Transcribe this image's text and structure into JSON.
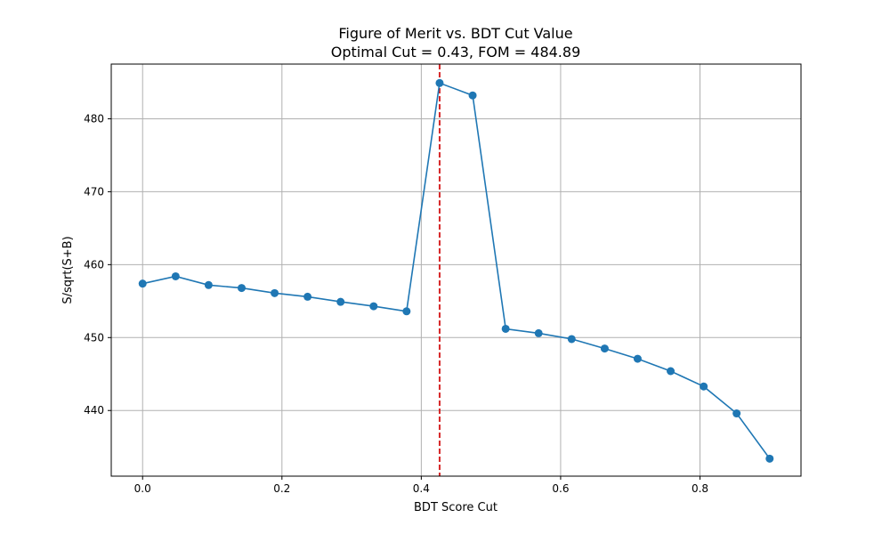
{
  "chart_data": {
    "type": "line",
    "title": "Figure of Merit vs. BDT Cut Value",
    "subtitle": "Optimal Cut = 0.43, FOM = 484.89",
    "xlabel": "BDT Score Cut",
    "ylabel": "S/sqrt(S+B)",
    "xlim": [
      -0.045,
      0.945
    ],
    "ylim": [
      431.0,
      487.5
    ],
    "xticks": [
      0.0,
      0.2,
      0.4,
      0.6,
      0.8
    ],
    "xtick_labels": [
      "0.0",
      "0.2",
      "0.4",
      "0.6",
      "0.8"
    ],
    "yticks": [
      440,
      450,
      460,
      470,
      480
    ],
    "ytick_labels": [
      "440",
      "450",
      "460",
      "470",
      "480"
    ],
    "grid": true,
    "series": [
      {
        "color": "#1f77b4",
        "marker": "circle",
        "x": [
          0.0,
          0.0474,
          0.0947,
          0.1421,
          0.1895,
          0.2368,
          0.2842,
          0.3316,
          0.3789,
          0.4263,
          0.4737,
          0.5211,
          0.5684,
          0.6158,
          0.6632,
          0.7105,
          0.7579,
          0.8053,
          0.8526,
          0.9
        ],
        "y": [
          457.4,
          458.4,
          457.2,
          456.8,
          456.1,
          455.6,
          454.9,
          454.3,
          453.6,
          484.9,
          483.2,
          451.2,
          450.6,
          449.8,
          448.5,
          447.1,
          445.4,
          443.3,
          439.6,
          433.4
        ]
      }
    ],
    "reference_line": {
      "orientation": "vertical",
      "x": 0.4263,
      "color": "#d62728",
      "style": "dashed"
    }
  }
}
